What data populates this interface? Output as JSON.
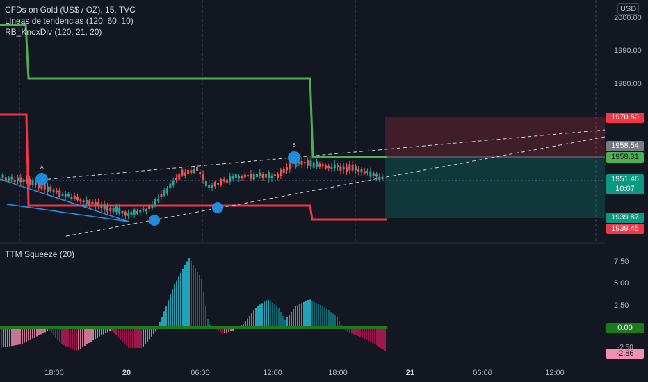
{
  "header": {
    "symbol": "CFDs on Gold (US$ / OZ), 15, TVC",
    "indicator_1": "Lineas de tendencias (120, 60, 10)",
    "indicator_2": "RB_KnoxDiv (120, 21, 20)",
    "currency": "USD"
  },
  "price_axis": {
    "ticks": [
      "2000.00",
      "1990.00",
      "1980.00"
    ]
  },
  "price_tags": {
    "upper_zone": "1970.50",
    "gray_level": "1958.54",
    "green_level": "1958.31",
    "last_price": "1951.46",
    "countdown": "10:07",
    "lower_zone": "1939.87",
    "red_level": "1939.45"
  },
  "point_labels": {
    "a": "A",
    "b": "B"
  },
  "oscillator": {
    "title": "TTM Squeeze (20)",
    "ticks": [
      "7.50",
      "5.00",
      "2.50"
    ],
    "zero_tag": "0.00",
    "value_tag": "-2.86",
    "clipped_tick": "-2.50"
  },
  "time_axis": {
    "labels": [
      "18:00",
      "20",
      "06:00",
      "12:00",
      "18:00",
      "21",
      "06:00",
      "12:00"
    ]
  },
  "colors": {
    "background": "#131722",
    "up_candle": "#26a69a",
    "down_candle": "#ef5350",
    "green_line": "#4caf50",
    "red_line": "#f23645",
    "blue_trend": "#2196f3"
  }
}
